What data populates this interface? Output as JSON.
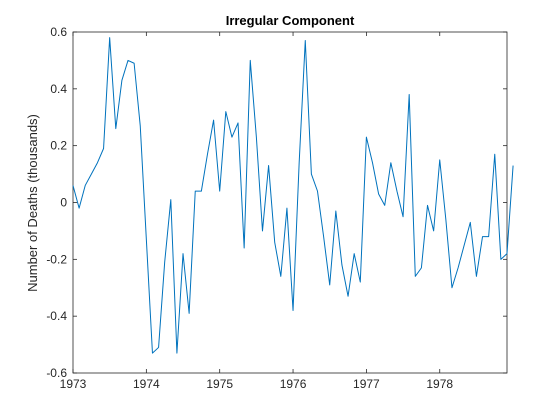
{
  "chart_data": {
    "type": "line",
    "title": "Irregular Component",
    "xlabel": "",
    "ylabel": "Number of Deaths (thousands)",
    "xlim": [
      1973,
      1978.917
    ],
    "ylim": [
      -0.6,
      0.6
    ],
    "x_ticks": [
      {
        "value": 1973,
        "label": "1973"
      },
      {
        "value": 1974,
        "label": "1974"
      },
      {
        "value": 1975,
        "label": "1975"
      },
      {
        "value": 1976,
        "label": "1976"
      },
      {
        "value": 1977,
        "label": "1977"
      },
      {
        "value": 1978,
        "label": "1978"
      }
    ],
    "y_ticks": [
      {
        "value": -0.6,
        "label": "-0.6"
      },
      {
        "value": -0.4,
        "label": "-0.4"
      },
      {
        "value": -0.2,
        "label": "-0.2"
      },
      {
        "value": 0,
        "label": "0"
      },
      {
        "value": 0.2,
        "label": "0.2"
      },
      {
        "value": 0.4,
        "label": "0.4"
      },
      {
        "value": 0.6,
        "label": "0.6"
      }
    ],
    "grid": false,
    "line_color": "#0072bd",
    "series": [
      {
        "x_start": 1973,
        "x_step": 0.0833333,
        "values": [
          0.06,
          -0.02,
          0.06,
          0.1,
          0.14,
          0.19,
          0.58,
          0.26,
          0.43,
          0.5,
          0.49,
          0.27,
          -0.13,
          -0.53,
          -0.51,
          -0.21,
          0.01,
          -0.53,
          -0.18,
          -0.39,
          0.04,
          0.04,
          0.17,
          0.29,
          0.04,
          0.32,
          0.23,
          0.28,
          -0.16,
          0.5,
          0.23,
          -0.1,
          0.13,
          -0.14,
          -0.26,
          -0.02,
          -0.38,
          0.14,
          0.57,
          0.1,
          0.04,
          -0.12,
          -0.29,
          -0.03,
          -0.22,
          -0.33,
          -0.18,
          -0.28,
          0.23,
          0.14,
          0.03,
          -0.01,
          0.14,
          0.04,
          -0.05,
          0.38,
          -0.26,
          -0.23,
          -0.01,
          -0.1,
          0.15,
          -0.06,
          -0.3,
          -0.23,
          -0.15,
          -0.07,
          -0.26,
          -0.12,
          -0.12,
          0.17,
          -0.2,
          -0.18,
          0.13
        ]
      }
    ]
  }
}
